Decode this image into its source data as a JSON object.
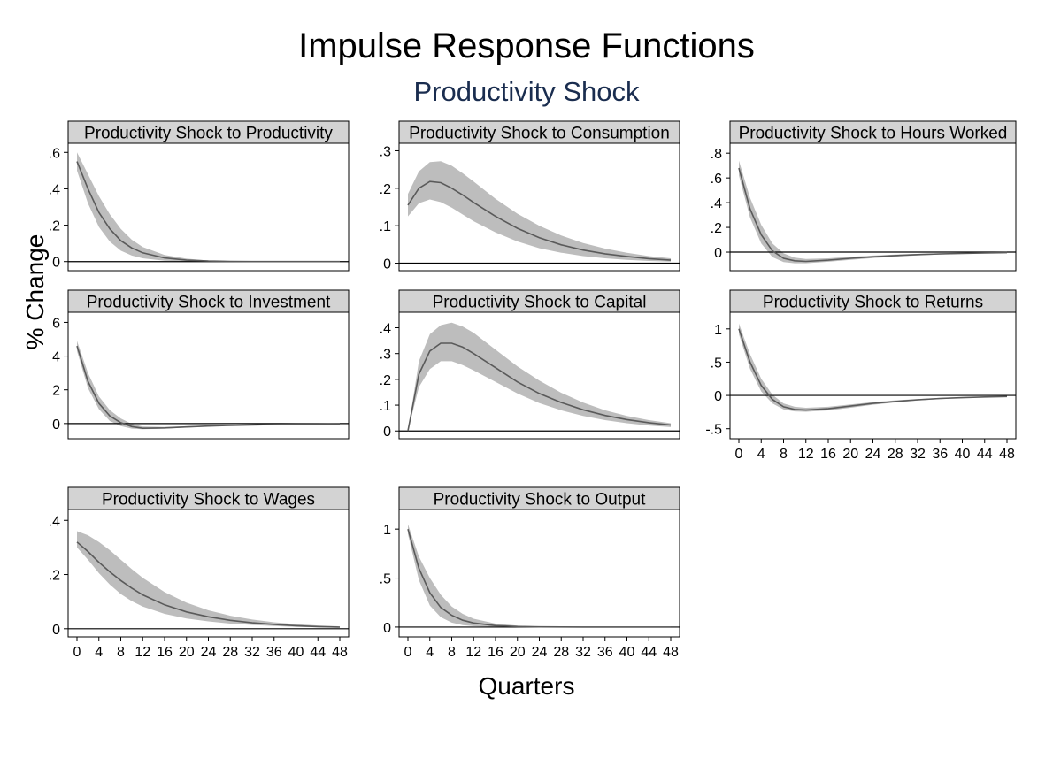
{
  "title": "Impulse Response Functions",
  "subtitle": "Productivity Shock",
  "ylabel": "% Change",
  "xlabel": "Quarters",
  "colors": {
    "band": "#bdbdbd",
    "line": "#5a5a5a",
    "strip": "#d3d3d3",
    "subtitle": "#1a2d4f"
  },
  "chart_data": [
    {
      "type": "line",
      "title": "Productivity Shock to Productivity",
      "xlim": [
        0,
        48
      ],
      "ylim": [
        -0.05,
        0.65
      ],
      "yticks": [
        0,
        0.2,
        0.4,
        0.6
      ],
      "ytick_labels": [
        "0",
        ".2",
        ".4",
        ".6"
      ],
      "xticks": [],
      "xtick_labels": [],
      "x": [
        0,
        2,
        4,
        6,
        8,
        10,
        12,
        16,
        20,
        24,
        28,
        32,
        36,
        40,
        44,
        48
      ],
      "irf": [
        0.55,
        0.4,
        0.27,
        0.18,
        0.115,
        0.075,
        0.048,
        0.02,
        0.008,
        0.003,
        0.001,
        0,
        0,
        0,
        0,
        0
      ],
      "lower": [
        0.5,
        0.32,
        0.19,
        0.11,
        0.06,
        0.033,
        0.018,
        0.005,
        0.001,
        0,
        0,
        0,
        0,
        0,
        0,
        0
      ],
      "upper": [
        0.6,
        0.48,
        0.36,
        0.26,
        0.18,
        0.12,
        0.08,
        0.036,
        0.016,
        0.006,
        0.002,
        0.001,
        0,
        0,
        0,
        0
      ]
    },
    {
      "type": "line",
      "title": "Productivity Shock to Consumption",
      "xlim": [
        0,
        48
      ],
      "ylim": [
        -0.02,
        0.32
      ],
      "yticks": [
        0,
        0.1,
        0.2,
        0.3
      ],
      "ytick_labels": [
        "0",
        ".1",
        ".2",
        ".3"
      ],
      "xticks": [],
      "xtick_labels": [],
      "x": [
        0,
        2,
        4,
        6,
        8,
        10,
        12,
        16,
        20,
        24,
        28,
        32,
        36,
        40,
        44,
        48
      ],
      "irf": [
        0.155,
        0.2,
        0.218,
        0.215,
        0.2,
        0.182,
        0.162,
        0.125,
        0.093,
        0.068,
        0.049,
        0.035,
        0.025,
        0.018,
        0.012,
        0.008
      ],
      "lower": [
        0.125,
        0.16,
        0.17,
        0.163,
        0.148,
        0.13,
        0.112,
        0.082,
        0.058,
        0.04,
        0.028,
        0.019,
        0.013,
        0.009,
        0.006,
        0.004
      ],
      "upper": [
        0.185,
        0.245,
        0.27,
        0.272,
        0.26,
        0.24,
        0.218,
        0.172,
        0.132,
        0.1,
        0.074,
        0.054,
        0.039,
        0.028,
        0.019,
        0.013
      ]
    },
    {
      "type": "line",
      "title": "Productivity Shock to Hours Worked",
      "xlim": [
        0,
        48
      ],
      "ylim": [
        -0.15,
        0.88
      ],
      "yticks": [
        0,
        0.2,
        0.4,
        0.6,
        0.8
      ],
      "ytick_labels": [
        "0",
        ".2",
        ".4",
        ".6",
        ".8"
      ],
      "xticks": [],
      "xtick_labels": [],
      "x": [
        0,
        2,
        4,
        6,
        8,
        10,
        12,
        16,
        20,
        24,
        28,
        32,
        36,
        40,
        44,
        48
      ],
      "irf": [
        0.68,
        0.35,
        0.14,
        0.01,
        -0.05,
        -0.07,
        -0.075,
        -0.065,
        -0.05,
        -0.038,
        -0.028,
        -0.02,
        -0.014,
        -0.01,
        -0.006,
        -0.004
      ],
      "lower": [
        0.62,
        0.28,
        0.07,
        -0.04,
        -0.08,
        -0.09,
        -0.09,
        -0.078,
        -0.062,
        -0.048,
        -0.036,
        -0.026,
        -0.019,
        -0.013,
        -0.009,
        -0.006
      ],
      "upper": [
        0.74,
        0.44,
        0.22,
        0.07,
        -0.01,
        -0.045,
        -0.055,
        -0.05,
        -0.038,
        -0.028,
        -0.02,
        -0.014,
        -0.009,
        -0.006,
        -0.004,
        -0.002
      ]
    },
    {
      "type": "line",
      "title": "Productivity Shock to Investment",
      "xlim": [
        0,
        48
      ],
      "ylim": [
        -0.9,
        6.6
      ],
      "yticks": [
        0,
        2,
        4,
        6
      ],
      "ytick_labels": [
        "0",
        "2",
        "4",
        "6"
      ],
      "xticks": [],
      "xtick_labels": [],
      "x": [
        0,
        2,
        4,
        6,
        8,
        10,
        12,
        16,
        20,
        24,
        28,
        32,
        36,
        40,
        44,
        48
      ],
      "irf": [
        4.6,
        2.5,
        1.2,
        0.45,
        0.05,
        -0.18,
        -0.28,
        -0.26,
        -0.2,
        -0.15,
        -0.11,
        -0.08,
        -0.055,
        -0.04,
        -0.028,
        -0.02
      ],
      "lower": [
        4.3,
        2.1,
        0.85,
        0.15,
        -0.15,
        -0.3,
        -0.34,
        -0.3,
        -0.24,
        -0.18,
        -0.13,
        -0.095,
        -0.068,
        -0.049,
        -0.034,
        -0.024
      ],
      "upper": [
        4.9,
        3.0,
        1.6,
        0.8,
        0.3,
        -0.02,
        -0.18,
        -0.2,
        -0.16,
        -0.12,
        -0.09,
        -0.064,
        -0.045,
        -0.032,
        -0.022,
        -0.016
      ]
    },
    {
      "type": "line",
      "title": "Productivity Shock to Capital",
      "xlim": [
        0,
        48
      ],
      "ylim": [
        -0.03,
        0.46
      ],
      "yticks": [
        0,
        0.1,
        0.2,
        0.3,
        0.4
      ],
      "ytick_labels": [
        "0",
        ".1",
        ".2",
        ".3",
        ".4"
      ],
      "xticks": [],
      "xtick_labels": [],
      "x": [
        0,
        2,
        4,
        6,
        8,
        10,
        12,
        16,
        20,
        24,
        28,
        32,
        36,
        40,
        44,
        48
      ],
      "irf": [
        0,
        0.22,
        0.31,
        0.34,
        0.34,
        0.325,
        0.3,
        0.245,
        0.19,
        0.145,
        0.11,
        0.082,
        0.06,
        0.044,
        0.032,
        0.023
      ],
      "lower": [
        0,
        0.17,
        0.24,
        0.27,
        0.27,
        0.255,
        0.235,
        0.19,
        0.145,
        0.108,
        0.08,
        0.058,
        0.042,
        0.03,
        0.021,
        0.015
      ],
      "upper": [
        0,
        0.27,
        0.375,
        0.41,
        0.42,
        0.405,
        0.38,
        0.315,
        0.25,
        0.195,
        0.148,
        0.11,
        0.08,
        0.058,
        0.042,
        0.03
      ]
    },
    {
      "type": "line",
      "title": "Productivity Shock to Returns",
      "xlim": [
        0,
        48
      ],
      "ylim": [
        -0.65,
        1.25
      ],
      "yticks": [
        -0.5,
        0,
        0.5,
        1
      ],
      "ytick_labels": [
        "-.5",
        "0",
        ".5",
        "1"
      ],
      "xticks": [
        0,
        4,
        8,
        12,
        16,
        20,
        24,
        28,
        32,
        36,
        40,
        44,
        48
      ],
      "xtick_labels": [
        "0",
        "4",
        "8",
        "12",
        "16",
        "20",
        "24",
        "28",
        "32",
        "36",
        "40",
        "44",
        "48"
      ],
      "x": [
        0,
        2,
        4,
        6,
        8,
        10,
        12,
        16,
        20,
        24,
        28,
        32,
        36,
        40,
        44,
        48
      ],
      "irf": [
        1.0,
        0.5,
        0.15,
        -0.06,
        -0.17,
        -0.21,
        -0.22,
        -0.2,
        -0.16,
        -0.12,
        -0.09,
        -0.065,
        -0.046,
        -0.033,
        -0.023,
        -0.016
      ],
      "lower": [
        0.92,
        0.4,
        0.06,
        -0.12,
        -0.21,
        -0.24,
        -0.245,
        -0.225,
        -0.185,
        -0.14,
        -0.105,
        -0.077,
        -0.056,
        -0.04,
        -0.028,
        -0.02
      ],
      "upper": [
        1.08,
        0.62,
        0.25,
        0.01,
        -0.12,
        -0.17,
        -0.185,
        -0.17,
        -0.135,
        -0.1,
        -0.074,
        -0.053,
        -0.037,
        -0.026,
        -0.018,
        -0.012
      ]
    },
    {
      "type": "line",
      "title": "Productivity Shock to Wages",
      "xlim": [
        0,
        48
      ],
      "ylim": [
        -0.03,
        0.44
      ],
      "yticks": [
        0,
        0.2,
        0.4
      ],
      "ytick_labels": [
        "0",
        ".2",
        ".4"
      ],
      "xticks": [
        0,
        4,
        8,
        12,
        16,
        20,
        24,
        28,
        32,
        36,
        40,
        44,
        48
      ],
      "xtick_labels": [
        "0",
        "4",
        "8",
        "12",
        "16",
        "20",
        "24",
        "28",
        "32",
        "36",
        "40",
        "44",
        "48"
      ],
      "x": [
        0,
        2,
        4,
        6,
        8,
        10,
        12,
        16,
        20,
        24,
        28,
        32,
        36,
        40,
        44,
        48
      ],
      "irf": [
        0.32,
        0.285,
        0.245,
        0.21,
        0.178,
        0.15,
        0.125,
        0.088,
        0.062,
        0.044,
        0.031,
        0.022,
        0.016,
        0.011,
        0.008,
        0.006
      ],
      "lower": [
        0.3,
        0.255,
        0.205,
        0.163,
        0.128,
        0.102,
        0.082,
        0.055,
        0.038,
        0.027,
        0.019,
        0.014,
        0.01,
        0.007,
        0.005,
        0.004
      ],
      "upper": [
        0.36,
        0.345,
        0.32,
        0.29,
        0.255,
        0.22,
        0.188,
        0.135,
        0.096,
        0.068,
        0.048,
        0.034,
        0.024,
        0.017,
        0.012,
        0.009
      ]
    },
    {
      "type": "line",
      "title": "Productivity Shock to Output",
      "xlim": [
        0,
        48
      ],
      "ylim": [
        -0.1,
        1.2
      ],
      "yticks": [
        0,
        0.5,
        1
      ],
      "ytick_labels": [
        "0",
        ".5",
        "1"
      ],
      "xticks": [
        0,
        4,
        8,
        12,
        16,
        20,
        24,
        28,
        32,
        36,
        40,
        44,
        48
      ],
      "xtick_labels": [
        "0",
        "4",
        "8",
        "12",
        "16",
        "20",
        "24",
        "28",
        "32",
        "36",
        "40",
        "44",
        "48"
      ],
      "x": [
        0,
        2,
        4,
        6,
        8,
        10,
        12,
        16,
        20,
        24,
        28,
        32,
        36,
        40,
        44,
        48
      ],
      "irf": [
        1.0,
        0.6,
        0.35,
        0.2,
        0.12,
        0.07,
        0.042,
        0.015,
        0.006,
        0.002,
        0.001,
        0,
        0,
        0,
        0,
        0
      ],
      "lower": [
        0.95,
        0.48,
        0.22,
        0.1,
        0.045,
        0.02,
        0.009,
        0.002,
        0,
        0,
        0,
        0,
        0,
        0,
        0,
        0
      ],
      "upper": [
        1.05,
        0.72,
        0.5,
        0.33,
        0.21,
        0.135,
        0.085,
        0.035,
        0.015,
        0.006,
        0.002,
        0.001,
        0,
        0,
        0,
        0
      ]
    }
  ]
}
